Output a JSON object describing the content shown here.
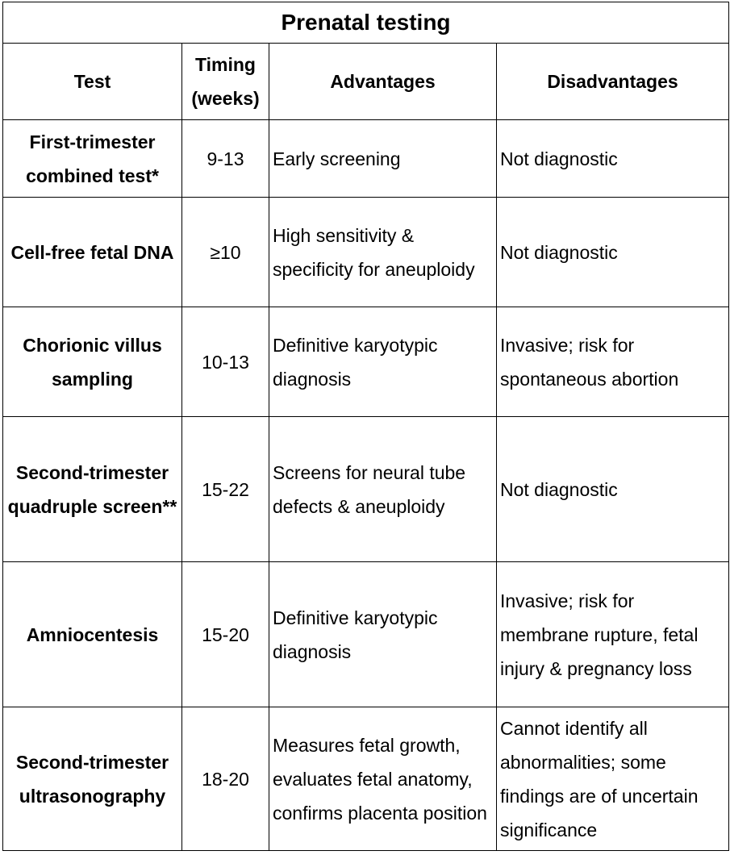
{
  "title": "Prenatal testing",
  "headers": [
    "Test",
    "Timing (weeks)",
    "Advantages",
    "Disadvantages"
  ],
  "rows": [
    {
      "test": "First-trimester combined test*",
      "timing": "9-13",
      "advantages": "Early screening",
      "disadvantages": "Not diagnostic"
    },
    {
      "test": "Cell-free fetal DNA",
      "timing": "≥10",
      "advantages": "High sensitivity & specificity for aneuploidy",
      "disadvantages": "Not diagnostic"
    },
    {
      "test": "Chorionic villus sampling",
      "timing": "10-13",
      "advantages": "Definitive karyotypic diagnosis",
      "disadvantages": "Invasive; risk for spontaneous abortion"
    },
    {
      "test": "Second-trimester quadruple screen**",
      "timing": "15-22",
      "advantages": "Screens for neural tube defects & aneuploidy",
      "disadvantages": "Not diagnostic"
    },
    {
      "test": "Amniocentesis",
      "timing": "15-20",
      "advantages": "Definitive karyotypic diagnosis",
      "disadvantages": "Invasive; risk for membrane rupture, fetal injury & pregnancy loss"
    },
    {
      "test": "Second-trimester ultrasonography",
      "timing": "18-20",
      "advantages": "Measures fetal growth, evaluates fetal anatomy, confirms placenta position",
      "disadvantages": "Cannot identify all abnormalities; some findings are of uncertain significance"
    }
  ]
}
